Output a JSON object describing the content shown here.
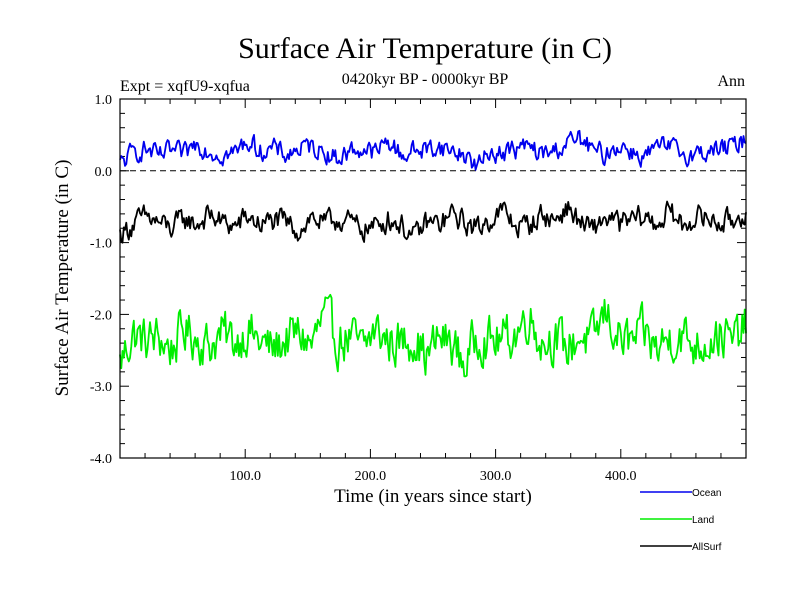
{
  "chart_data": {
    "type": "line",
    "title": "Surface Air Temperature (in C)",
    "subtitle": "0420kyr BP - 0000kyr BP",
    "left_label": "Expt = xqfU9-xqfua",
    "right_label": "Ann",
    "xlabel": "Time (in years since start)",
    "ylabel": "Surface Air Temperature (in C)",
    "xlim": [
      0,
      500
    ],
    "ylim": [
      -4.0,
      1.0
    ],
    "x_ticks": [
      100,
      200,
      300,
      400
    ],
    "x_tick_labels": [
      "100.0",
      "200.0",
      "300.0",
      "400.0"
    ],
    "y_ticks": [
      1.0,
      0.0,
      -1.0,
      -2.0,
      -3.0,
      -4.0
    ],
    "y_tick_labels": [
      "1.0",
      "0.0",
      "-1.0",
      "-2.0",
      "-3.0",
      "-4.0"
    ],
    "zero_line": 0.0,
    "series": [
      {
        "name": "Ocean",
        "color": "#0000ee",
        "mean": 0.25,
        "noise": 0.12,
        "values": [
          -0.05,
          0.25,
          0.35,
          0.15,
          0.3,
          0.2,
          0.5,
          0.3,
          0.2,
          0.25,
          0.55,
          0.3,
          0.35,
          0.2,
          0.35,
          0.4,
          0.3,
          0.1,
          0.3,
          0.35,
          0.25,
          0.55,
          0.2,
          0.3,
          0.35,
          0.4,
          0.3,
          0.2,
          -0.1,
          0.3,
          0.25,
          0.35,
          0.4,
          0.2,
          0.3,
          0.5,
          0.6,
          0.3,
          0.2,
          0.45,
          0.3,
          0.15,
          0.35,
          0.4,
          0.25,
          0.2,
          0.3,
          0.35,
          0.4,
          0.6
        ]
      },
      {
        "name": "Land",
        "color": "#00ee00",
        "mean": -2.35,
        "noise": 0.28,
        "values": [
          -2.95,
          -2.2,
          -2.4,
          -2.3,
          -2.6,
          -2.1,
          -2.3,
          -2.5,
          -2.2,
          -2.4,
          -2.1,
          -2.45,
          -2.6,
          -2.35,
          -2.2,
          -2.5,
          -1.75,
          -2.4,
          -2.3,
          -2.6,
          -2.1,
          -2.4,
          -2.45,
          -2.25,
          -2.8,
          -2.3,
          -2.45,
          -3.0,
          -2.2,
          -2.4,
          -2.35,
          -2.2,
          -1.7,
          -2.4,
          -2.3,
          -2.6,
          -2.25,
          -2.4,
          -1.65,
          -2.3,
          -2.45,
          -2.2,
          -2.6,
          -2.3,
          -2.25,
          -2.5,
          -2.35,
          -2.2,
          -2.45,
          -2.0
        ]
      },
      {
        "name": "AllSurf",
        "color": "#000000",
        "mean": -0.75,
        "noise": 0.14,
        "values": [
          -1.0,
          -0.75,
          -0.55,
          -0.7,
          -0.85,
          -0.6,
          -0.75,
          -0.5,
          -0.7,
          -0.8,
          -0.55,
          -0.75,
          -0.65,
          -0.7,
          -0.9,
          -0.55,
          -0.75,
          -0.6,
          -0.7,
          -0.85,
          -0.8,
          -0.6,
          -0.75,
          -1.1,
          -0.7,
          -0.75,
          -0.5,
          -0.7,
          -0.85,
          -0.6,
          -0.4,
          -0.8,
          -0.75,
          -0.5,
          -0.65,
          -0.3,
          -0.7,
          -0.9,
          -0.55,
          -0.75,
          -0.65,
          -0.55,
          -0.75,
          -0.4,
          -0.8,
          -0.55,
          -0.6,
          -0.7,
          -0.65,
          -0.4
        ]
      }
    ],
    "legend": {
      "placement": "below-right",
      "entries": [
        "Ocean",
        "Land",
        "AllSurf"
      ]
    }
  }
}
